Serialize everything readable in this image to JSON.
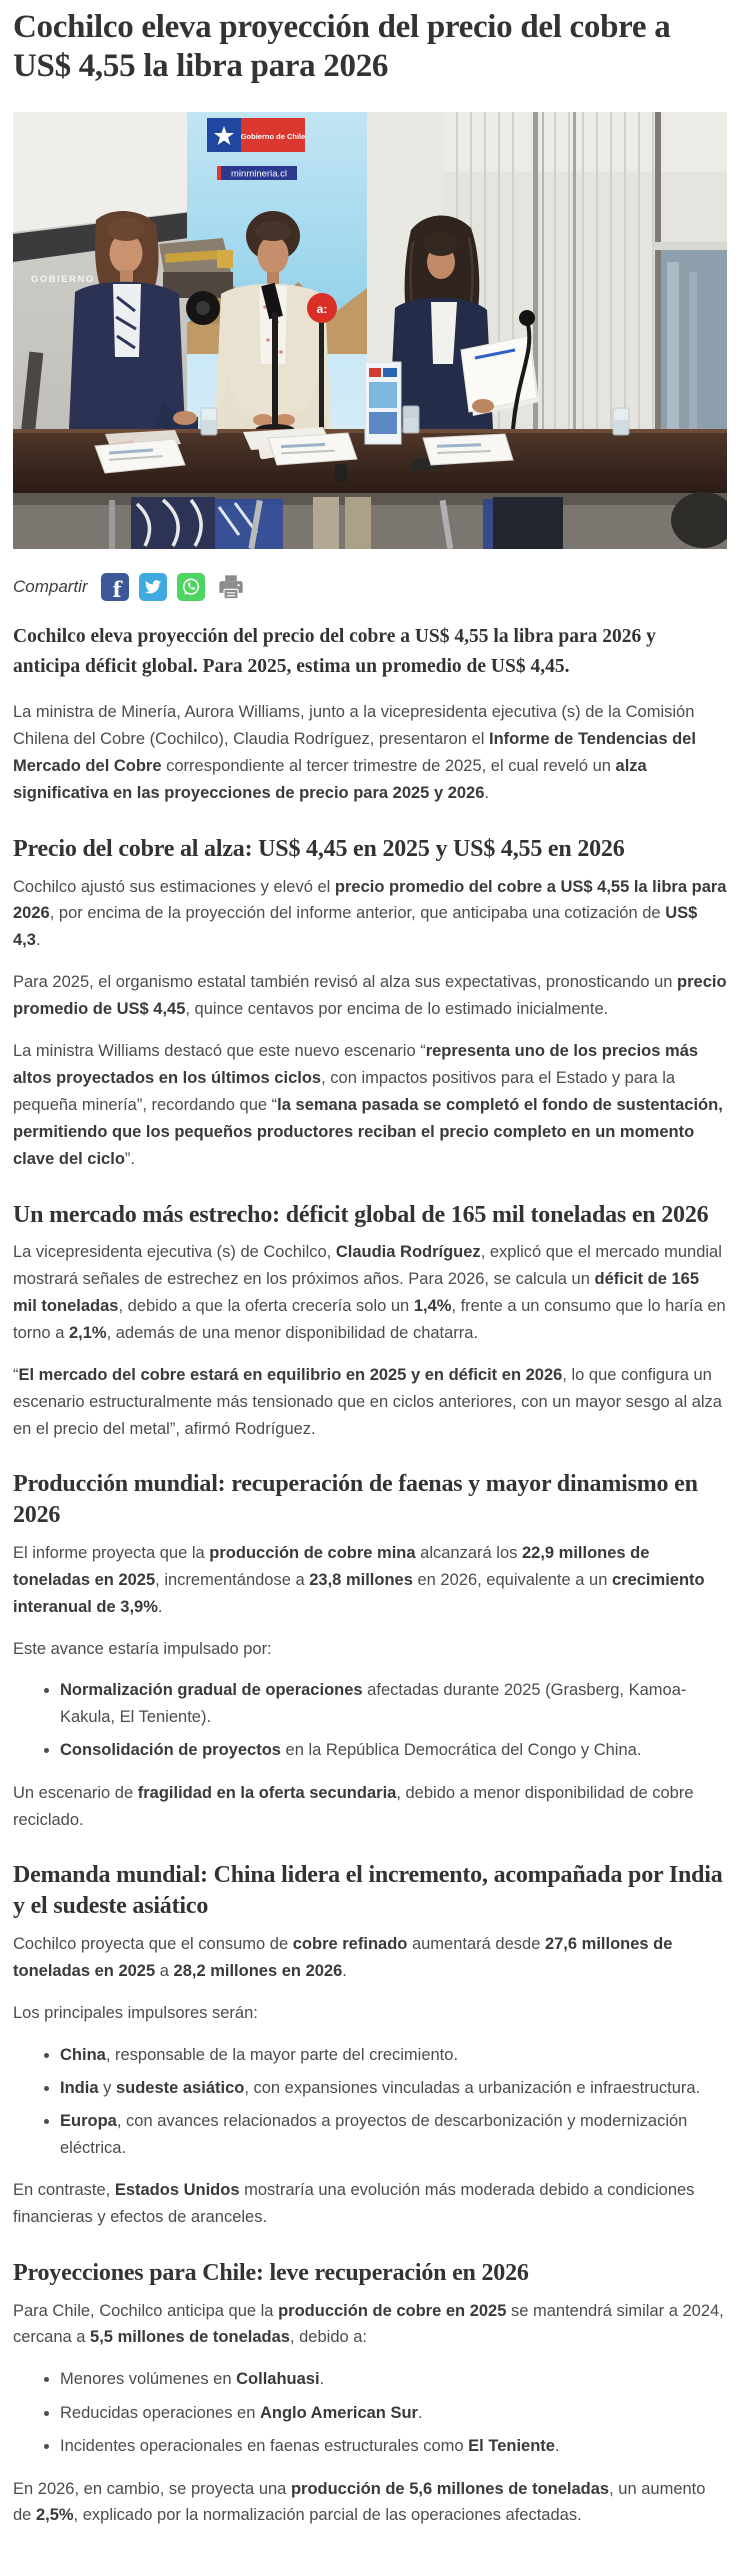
{
  "page": {
    "title": "Cochilco eleva proyección del precio del cobre a US$ 4,55 la libra para 2026"
  },
  "photo": {
    "screen_label": "GOBIERNO DE CHILE",
    "flag_label": "Gobierno de Chile",
    "banner_label": "minmineria.cl",
    "mic_label": "a:"
  },
  "share": {
    "label": "Compartir",
    "buttons": [
      {
        "name": "facebook",
        "color": "#3b5998"
      },
      {
        "name": "twitter",
        "color": "#3fa9e0"
      },
      {
        "name": "whatsapp",
        "color": "#4cd661"
      },
      {
        "name": "print",
        "color": "#8c8c8c"
      }
    ]
  },
  "article": {
    "lede": "Cochilco eleva proyección del precio del cobre a US$ 4,55 la libra para 2026 y anticipa déficit global. Para 2025, estima un promedio de US$ 4,45.",
    "blocks": [
      {
        "type": "p",
        "segs": [
          {
            "t": "La ministra de Minería, Aurora Williams, junto a la vicepresidenta ejecutiva (s) de la Comisión Chilena del Cobre (Cochilco), Claudia Rodríguez, presentaron el "
          },
          {
            "t": "Informe de Tendencias del Mercado del Cobre",
            "b": true
          },
          {
            "t": " correspondiente al tercer trimestre de 2025, el cual reveló un "
          },
          {
            "t": "alza significativa en las proyecciones de precio para 2025 y 2026",
            "b": true
          },
          {
            "t": "."
          }
        ]
      },
      {
        "type": "h2",
        "text": "Precio del cobre al alza: US$ 4,45 en 2025 y US$ 4,55 en 2026"
      },
      {
        "type": "p",
        "segs": [
          {
            "t": "Cochilco ajustó sus estimaciones y elevó el "
          },
          {
            "t": "precio promedio del cobre a US$ 4,55 la libra para 2026",
            "b": true
          },
          {
            "t": ", por encima de la proyección del informe anterior, que anticipaba una cotización de "
          },
          {
            "t": "US$ 4,3",
            "b": true
          },
          {
            "t": "."
          }
        ]
      },
      {
        "type": "p",
        "segs": [
          {
            "t": "Para 2025, el organismo estatal también revisó al alza sus expectativas, pronosticando un "
          },
          {
            "t": "precio promedio de US$ 4,45",
            "b": true
          },
          {
            "t": ", quince centavos por encima de lo estimado inicialmente."
          }
        ]
      },
      {
        "type": "p",
        "segs": [
          {
            "t": "La ministra Williams destacó que este nuevo escenario “"
          },
          {
            "t": "representa uno de los precios más altos proyectados en los últimos ciclos",
            "b": true
          },
          {
            "t": ", con impactos positivos para el Estado y para la pequeña minería”, recordando que “"
          },
          {
            "t": "la semana pasada se completó el fondo de sustentación, permitiendo que los pequeños productores reciban el precio completo en un momento clave del ciclo",
            "b": true
          },
          {
            "t": "”."
          }
        ]
      },
      {
        "type": "h2",
        "text": "Un mercado más estrecho: déficit global de 165 mil toneladas en 2026"
      },
      {
        "type": "p",
        "segs": [
          {
            "t": "La vicepresidenta ejecutiva (s) de Cochilco, "
          },
          {
            "t": "Claudia Rodríguez",
            "b": true
          },
          {
            "t": ", explicó que el mercado mundial mostrará señales de estrechez en los próximos años. Para 2026, se calcula un "
          },
          {
            "t": "déficit de 165 mil toneladas",
            "b": true
          },
          {
            "t": ", debido a que la oferta crecería solo un "
          },
          {
            "t": "1,4%",
            "b": true
          },
          {
            "t": ", frente a un consumo que lo haría en torno a "
          },
          {
            "t": "2,1%",
            "b": true
          },
          {
            "t": ", además de una menor disponibilidad de chatarra."
          }
        ]
      },
      {
        "type": "p",
        "segs": [
          {
            "t": "“"
          },
          {
            "t": "El mercado del cobre estará en equilibrio en 2025 y en déficit en 2026",
            "b": true
          },
          {
            "t": ", lo que configura un escenario estructuralmente más tensionado que en ciclos anteriores, con un mayor sesgo al alza en el precio del metal”, afirmó Rodríguez."
          }
        ]
      },
      {
        "type": "h2",
        "text": "Producción mundial: recuperación de faenas y mayor dinamismo en 2026"
      },
      {
        "type": "p",
        "segs": [
          {
            "t": "El informe proyecta que la "
          },
          {
            "t": "producción de cobre mina",
            "b": true
          },
          {
            "t": " alcanzará los "
          },
          {
            "t": "22,9 millones de toneladas en 2025",
            "b": true
          },
          {
            "t": ", incrementándose a "
          },
          {
            "t": "23,8 millones",
            "b": true
          },
          {
            "t": " en 2026, equivalente a un "
          },
          {
            "t": "crecimiento interanual de 3,9%",
            "b": true
          },
          {
            "t": "."
          }
        ]
      },
      {
        "type": "p",
        "segs": [
          {
            "t": "Este avance estaría impulsado por:"
          }
        ]
      },
      {
        "type": "ul",
        "items": [
          [
            {
              "t": "Normalización gradual de operaciones",
              "b": true
            },
            {
              "t": " afectadas durante 2025 (Grasberg, Kamoa-Kakula, El Teniente)."
            }
          ],
          [
            {
              "t": "Consolidación de proyectos",
              "b": true
            },
            {
              "t": " en la República Democrática del Congo y China."
            }
          ]
        ]
      },
      {
        "type": "p",
        "segs": [
          {
            "t": "Un escenario de "
          },
          {
            "t": "fragilidad en la oferta secundaria",
            "b": true
          },
          {
            "t": ", debido a menor disponibilidad de cobre reciclado."
          }
        ]
      },
      {
        "type": "h2",
        "text": "Demanda mundial: China lidera el incremento, acompañada por India y el sudeste asiático"
      },
      {
        "type": "p",
        "segs": [
          {
            "t": "Cochilco proyecta que el consumo de "
          },
          {
            "t": "cobre refinado",
            "b": true
          },
          {
            "t": " aumentará desde "
          },
          {
            "t": "27,6 millones de toneladas en 2025",
            "b": true
          },
          {
            "t": " a "
          },
          {
            "t": "28,2 millones en 2026",
            "b": true
          },
          {
            "t": "."
          }
        ]
      },
      {
        "type": "p",
        "segs": [
          {
            "t": "Los principales impulsores serán:"
          }
        ]
      },
      {
        "type": "ul",
        "items": [
          [
            {
              "t": "China",
              "b": true
            },
            {
              "t": ", responsable de la mayor parte del crecimiento."
            }
          ],
          [
            {
              "t": "India",
              "b": true
            },
            {
              "t": " y "
            },
            {
              "t": "sudeste asiático",
              "b": true
            },
            {
              "t": ", con expansiones vinculadas a urbanización e infraestructura."
            }
          ],
          [
            {
              "t": "Europa",
              "b": true
            },
            {
              "t": ", con avances relacionados a proyectos de descarbonización y modernización eléctrica."
            }
          ]
        ]
      },
      {
        "type": "p",
        "segs": [
          {
            "t": "En contraste, "
          },
          {
            "t": "Estados Unidos",
            "b": true
          },
          {
            "t": " mostraría una evolución más moderada debido a condiciones financieras y efectos de aranceles."
          }
        ]
      },
      {
        "type": "h2",
        "text": "Proyecciones para Chile: leve recuperación en 2026"
      },
      {
        "type": "p",
        "segs": [
          {
            "t": "Para Chile, Cochilco anticipa que la "
          },
          {
            "t": "producción de cobre en 2025",
            "b": true
          },
          {
            "t": " se mantendrá similar a 2024, cercana a "
          },
          {
            "t": "5,5 millones de toneladas",
            "b": true
          },
          {
            "t": ", debido a:"
          }
        ]
      },
      {
        "type": "ul",
        "items": [
          [
            {
              "t": "Menores volúmenes en "
            },
            {
              "t": "Collahuasi",
              "b": true
            },
            {
              "t": "."
            }
          ],
          [
            {
              "t": "Reducidas operaciones en "
            },
            {
              "t": "Anglo American Sur",
              "b": true
            },
            {
              "t": "."
            }
          ],
          [
            {
              "t": "Incidentes operacionales en faenas estructurales como "
            },
            {
              "t": "El Teniente",
              "b": true
            },
            {
              "t": "."
            }
          ]
        ]
      },
      {
        "type": "p",
        "segs": [
          {
            "t": "En 2026, en cambio, se proyecta una "
          },
          {
            "t": "producción de 5,6 millones de toneladas",
            "b": true
          },
          {
            "t": ", un aumento de "
          },
          {
            "t": "2,5%",
            "b": true
          },
          {
            "t": ", explicado por la normalización parcial de las operaciones afectadas."
          }
        ]
      }
    ]
  }
}
